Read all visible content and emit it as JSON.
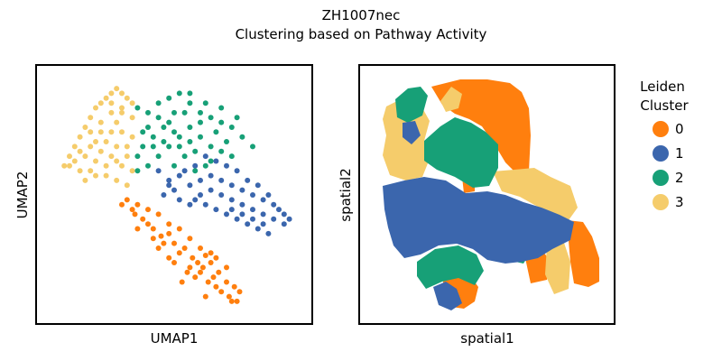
{
  "figure": {
    "title_line1": "ZH1007nec",
    "title_line2": "Clustering based on Pathway Activity"
  },
  "chart_data": [
    {
      "type": "scatter",
      "name": "umap",
      "xlabel": "UMAP1",
      "ylabel": "UMAP2",
      "show_ticks": false,
      "grid": false,
      "xlim": [
        0,
        100
      ],
      "ylim": [
        0,
        100
      ],
      "series": [
        {
          "cluster": "0",
          "color": "#ff7f0e",
          "points": [
            [
              32,
              48
            ],
            [
              36,
              46
            ],
            [
              40,
              44
            ],
            [
              44,
              42
            ],
            [
              48,
              38
            ],
            [
              52,
              36
            ],
            [
              56,
              32
            ],
            [
              60,
              28
            ],
            [
              62,
              25
            ],
            [
              64,
              22
            ],
            [
              67,
              18
            ],
            [
              70,
              14
            ],
            [
              73,
              12
            ],
            [
              75,
              10
            ],
            [
              42,
              36
            ],
            [
              50,
              30
            ],
            [
              57,
              24
            ],
            [
              61,
              20
            ],
            [
              55,
              18
            ],
            [
              48,
              24
            ],
            [
              38,
              40
            ],
            [
              35,
              42
            ],
            [
              45,
              33
            ],
            [
              52,
              26
            ],
            [
              58,
              16
            ],
            [
              63,
              14
            ],
            [
              66,
              12
            ],
            [
              71,
              8
            ],
            [
              74,
              6
            ],
            [
              30,
              46
            ],
            [
              34,
              44
            ],
            [
              40,
              38
            ],
            [
              46,
              30
            ],
            [
              54,
              28
            ],
            [
              59,
              22
            ],
            [
              65,
              16
            ],
            [
              68,
              10
            ],
            [
              72,
              6
            ],
            [
              50,
              22
            ],
            [
              56,
              20
            ],
            [
              44,
              28
            ],
            [
              36,
              36
            ],
            [
              42,
              32
            ],
            [
              48,
              34
            ],
            [
              60,
              18
            ],
            [
              64,
              26
            ],
            [
              53,
              14
            ],
            [
              62,
              8
            ],
            [
              70,
              20
            ],
            [
              66,
              24
            ]
          ]
        },
        {
          "cluster": "1",
          "color": "#3b66ad",
          "points": [
            [
              44,
              60
            ],
            [
              48,
              56
            ],
            [
              52,
              58
            ],
            [
              56,
              54
            ],
            [
              60,
              56
            ],
            [
              64,
              52
            ],
            [
              68,
              50
            ],
            [
              72,
              48
            ],
            [
              76,
              46
            ],
            [
              80,
              44
            ],
            [
              84,
              42
            ],
            [
              88,
              40
            ],
            [
              92,
              42
            ],
            [
              94,
              40
            ],
            [
              90,
              44
            ],
            [
              86,
              50
            ],
            [
              82,
              54
            ],
            [
              78,
              56
            ],
            [
              74,
              60
            ],
            [
              70,
              62
            ],
            [
              66,
              64
            ],
            [
              62,
              66
            ],
            [
              58,
              62
            ],
            [
              54,
              60
            ],
            [
              50,
              52
            ],
            [
              46,
              50
            ],
            [
              58,
              48
            ],
            [
              62,
              46
            ],
            [
              66,
              44
            ],
            [
              70,
              42
            ],
            [
              74,
              40
            ],
            [
              78,
              38
            ],
            [
              82,
              36
            ],
            [
              86,
              34
            ],
            [
              64,
              58
            ],
            [
              68,
              56
            ],
            [
              72,
              54
            ],
            [
              76,
              52
            ],
            [
              80,
              50
            ],
            [
              84,
              48
            ],
            [
              88,
              46
            ],
            [
              92,
              38
            ],
            [
              60,
              50
            ],
            [
              56,
              46
            ],
            [
              52,
              48
            ],
            [
              48,
              54
            ],
            [
              72,
              44
            ],
            [
              76,
              42
            ],
            [
              80,
              40
            ],
            [
              84,
              38
            ]
          ]
        },
        {
          "cluster": "2",
          "color": "#17a077",
          "points": [
            [
              36,
              86
            ],
            [
              40,
              84
            ],
            [
              44,
              88
            ],
            [
              48,
              90
            ],
            [
              52,
              92
            ],
            [
              56,
              88
            ],
            [
              60,
              84
            ],
            [
              64,
              82
            ],
            [
              68,
              80
            ],
            [
              72,
              78
            ],
            [
              76,
              74
            ],
            [
              80,
              70
            ],
            [
              74,
              82
            ],
            [
              68,
              86
            ],
            [
              62,
              88
            ],
            [
              56,
              92
            ],
            [
              50,
              84
            ],
            [
              46,
              78
            ],
            [
              42,
              74
            ],
            [
              38,
              70
            ],
            [
              36,
              66
            ],
            [
              40,
              62
            ],
            [
              44,
              66
            ],
            [
              48,
              70
            ],
            [
              52,
              74
            ],
            [
              56,
              78
            ],
            [
              60,
              74
            ],
            [
              64,
              70
            ],
            [
              68,
              68
            ],
            [
              72,
              66
            ],
            [
              54,
              66
            ],
            [
              50,
              62
            ],
            [
              58,
              68
            ],
            [
              62,
              62
            ],
            [
              46,
              72
            ],
            [
              40,
              78
            ],
            [
              44,
              82
            ],
            [
              38,
              76
            ],
            [
              66,
              76
            ],
            [
              70,
              72
            ],
            [
              60,
              80
            ],
            [
              54,
              84
            ],
            [
              48,
              80
            ],
            [
              42,
              70
            ],
            [
              36,
              60
            ],
            [
              52,
              70
            ],
            [
              58,
              60
            ],
            [
              64,
              64
            ],
            [
              56,
              72
            ],
            [
              50,
              76
            ]
          ]
        },
        {
          "cluster": "3",
          "color": "#f5cc6b",
          "points": [
            [
              8,
              62
            ],
            [
              10,
              66
            ],
            [
              12,
              70
            ],
            [
              14,
              74
            ],
            [
              16,
              78
            ],
            [
              18,
              82
            ],
            [
              20,
              86
            ],
            [
              22,
              88
            ],
            [
              24,
              90
            ],
            [
              26,
              92
            ],
            [
              28,
              94
            ],
            [
              30,
              92
            ],
            [
              32,
              90
            ],
            [
              34,
              88
            ],
            [
              30,
              84
            ],
            [
              28,
              80
            ],
            [
              26,
              76
            ],
            [
              24,
              72
            ],
            [
              22,
              68
            ],
            [
              20,
              64
            ],
            [
              18,
              60
            ],
            [
              16,
              56
            ],
            [
              14,
              60
            ],
            [
              12,
              64
            ],
            [
              24,
              58
            ],
            [
              28,
              56
            ],
            [
              32,
              54
            ],
            [
              34,
              60
            ],
            [
              30,
              62
            ],
            [
              26,
              66
            ],
            [
              32,
              70
            ],
            [
              34,
              74
            ],
            [
              30,
              76
            ],
            [
              28,
              70
            ],
            [
              20,
              72
            ],
            [
              18,
              76
            ],
            [
              22,
              80
            ],
            [
              26,
              84
            ],
            [
              16,
              66
            ],
            [
              10,
              62
            ],
            [
              14,
              68
            ],
            [
              20,
              58
            ],
            [
              24,
              62
            ],
            [
              28,
              64
            ],
            [
              32,
              66
            ],
            [
              22,
              76
            ],
            [
              18,
              70
            ],
            [
              26,
              88
            ],
            [
              30,
              86
            ],
            [
              34,
              82
            ]
          ]
        }
      ]
    },
    {
      "type": "scatter",
      "name": "spatial",
      "xlabel": "spatial1",
      "ylabel": "spatial2",
      "show_ticks": false,
      "grid": false,
      "xlim": [
        0,
        100
      ],
      "ylim": [
        0,
        100
      ]
    }
  ],
  "legend": {
    "title_line1": "Leiden",
    "title_line2": "Cluster",
    "placement": "right",
    "items": [
      {
        "label": "0",
        "color": "#ff7f0e"
      },
      {
        "label": "1",
        "color": "#3b66ad"
      },
      {
        "label": "2",
        "color": "#17a077"
      },
      {
        "label": "3",
        "color": "#f5cc6b"
      }
    ]
  }
}
